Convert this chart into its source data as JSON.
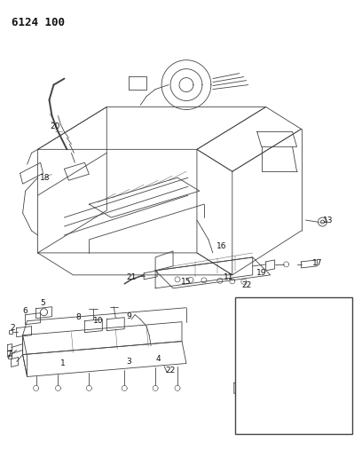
{
  "title": "6124 100",
  "bg_color": "#ffffff",
  "line_color": "#444444",
  "text_color": "#111111",
  "title_fontsize": 9,
  "label_fontsize": 6.5,
  "fig_width": 4.08,
  "fig_height": 5.33,
  "dpi": 100
}
